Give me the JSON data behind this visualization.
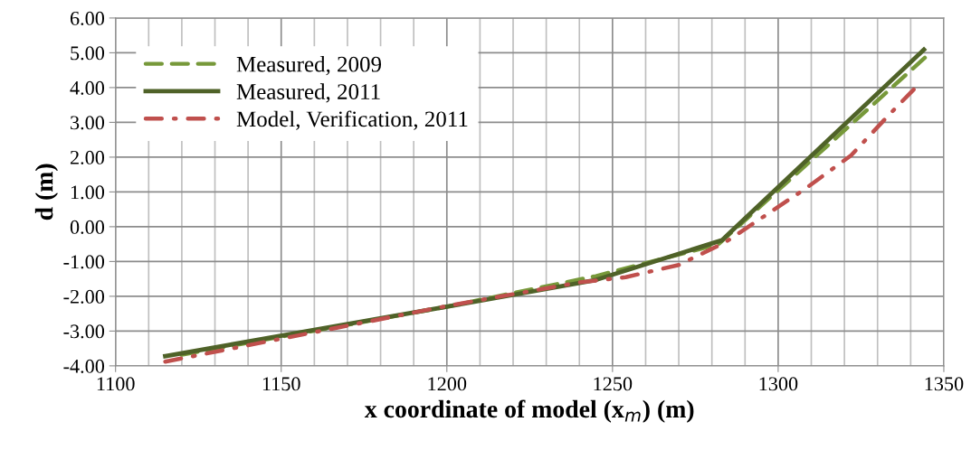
{
  "chart_data": {
    "type": "line",
    "xlabel": "x coordinate of model (x$_{m}$) (m)",
    "ylabel": "d (m)",
    "xlim": [
      1100,
      1350
    ],
    "xticks": [
      1100,
      1150,
      1200,
      1250,
      1300,
      1350
    ],
    "ylim": [
      -4,
      6
    ],
    "yticks": [
      {
        "value": -4,
        "label": "-4.00"
      },
      {
        "value": -3,
        "label": "-3.00"
      },
      {
        "value": -2,
        "label": "-2.00"
      },
      {
        "value": -1,
        "label": "-1.00"
      },
      {
        "value": 0,
        "label": "0.00"
      },
      {
        "value": 1,
        "label": "1.00"
      },
      {
        "value": 2,
        "label": "2.00"
      },
      {
        "value": 3,
        "label": "3.00"
      },
      {
        "value": 4,
        "label": "4.00"
      },
      {
        "value": 5,
        "label": "5.00"
      },
      {
        "value": 6,
        "label": "6.00"
      }
    ],
    "grid": true,
    "legend": "top left",
    "marker": "none",
    "series": [
      {
        "name": "Measured, 2009",
        "color": "#77993a",
        "line_style": "dashed",
        "x": [
          1120,
          1200,
          1245,
          1282,
          1345
        ],
        "values": [
          -3.68,
          -2.3,
          -1.42,
          -0.5,
          4.92
        ]
      },
      {
        "name": "Measured, 2011",
        "color": "#4f6228",
        "line_style": "solid",
        "x": [
          1115,
          1200,
          1245,
          1283,
          1344
        ],
        "values": [
          -3.72,
          -2.3,
          -1.53,
          -0.39,
          5.09
        ]
      },
      {
        "name": "Model, Verification, 2011",
        "color": "#c0504d",
        "line_style": "dashdot",
        "x": [
          1115,
          1200,
          1240,
          1254,
          1270,
          1284,
          1308,
          1322,
          1334,
          1342
        ],
        "values": [
          -3.88,
          -2.28,
          -1.6,
          -1.45,
          -1.1,
          -0.45,
          1.08,
          2.05,
          3.27,
          4.05
        ]
      }
    ]
  }
}
